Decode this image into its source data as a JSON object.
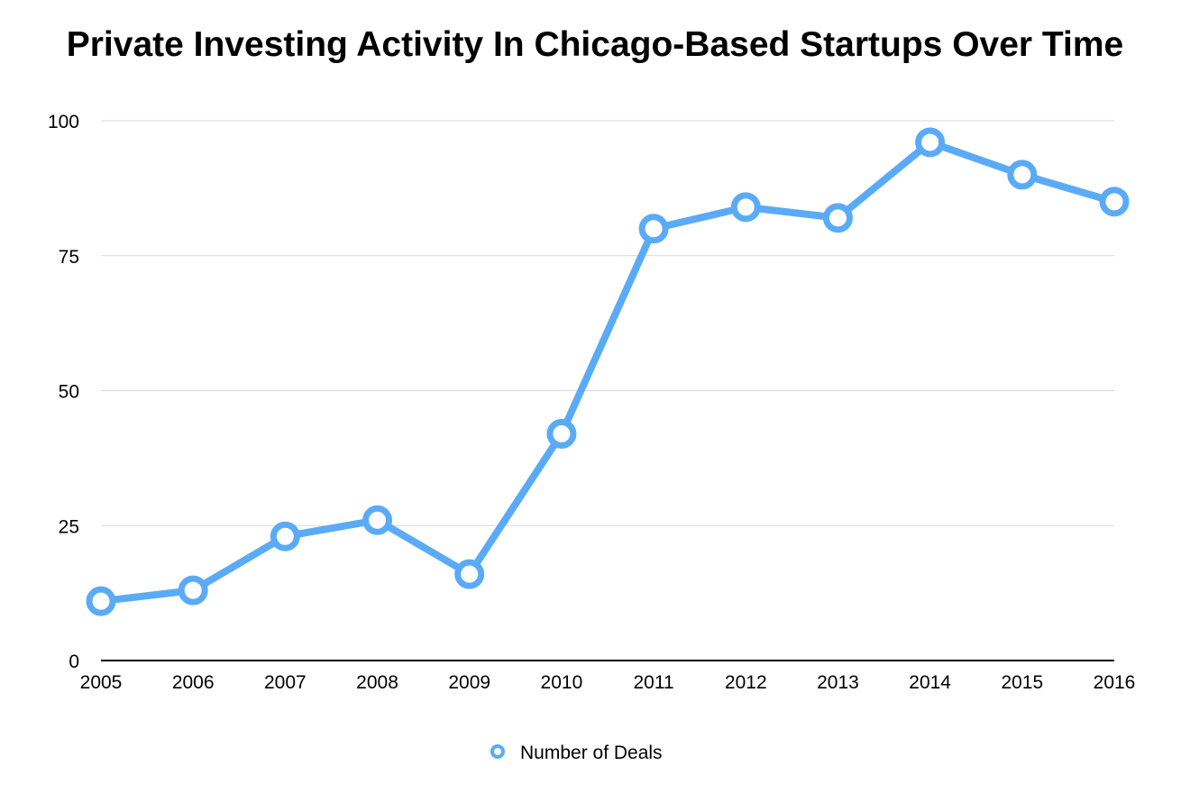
{
  "chart_data": {
    "type": "line",
    "title": "Private Investing Activity In Chicago-Based Startups Over Time",
    "xlabel": "",
    "ylabel": "",
    "categories": [
      "2005",
      "2006",
      "2007",
      "2008",
      "2009",
      "2010",
      "2011",
      "2012",
      "2013",
      "2014",
      "2015",
      "2016"
    ],
    "series": [
      {
        "name": "Number of Deals",
        "values": [
          11,
          13,
          23,
          26,
          16,
          42,
          80,
          84,
          82,
          96,
          90,
          85
        ]
      }
    ],
    "ylim": [
      0,
      100
    ],
    "yticks": [
      "0",
      "25",
      "50",
      "75",
      "100"
    ],
    "grid": true,
    "legend_position": "bottom",
    "color": "#5AABF7"
  }
}
